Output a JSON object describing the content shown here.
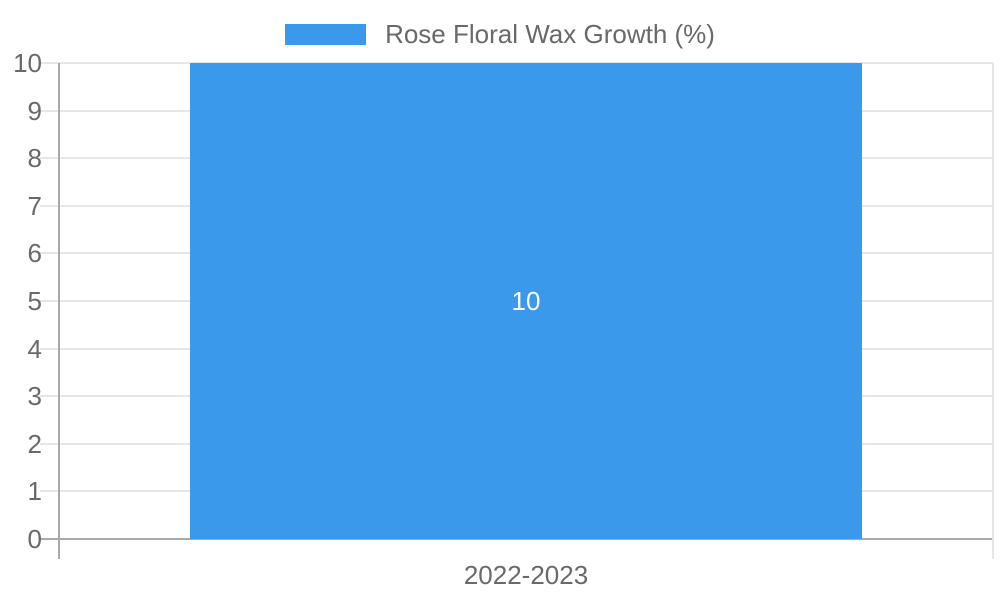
{
  "chart_data": {
    "type": "bar",
    "title": "Rose Floral Wax Growth (%)",
    "categories": [
      "2022-2023"
    ],
    "series": [
      {
        "name": "Rose Floral Wax Growth (%)",
        "values": [
          10
        ]
      }
    ],
    "bar_value_labels": [
      "10"
    ],
    "xlabel": "",
    "ylabel": "",
    "ylim": [
      0,
      10
    ],
    "ytick_step": 1,
    "ytick_labels": [
      "0",
      "1",
      "2",
      "3",
      "4",
      "5",
      "6",
      "7",
      "8",
      "9",
      "10"
    ],
    "grid": true,
    "legend_position": "top",
    "colors": {
      "bar": "#3B99EC",
      "grid_line": "#E6E6E6",
      "axis_line": "#A9A9A9",
      "tick_text": "#696969",
      "legend_text": "#696969",
      "bar_value_text": "#FFFFFF",
      "background": "#FFFFFF"
    }
  }
}
